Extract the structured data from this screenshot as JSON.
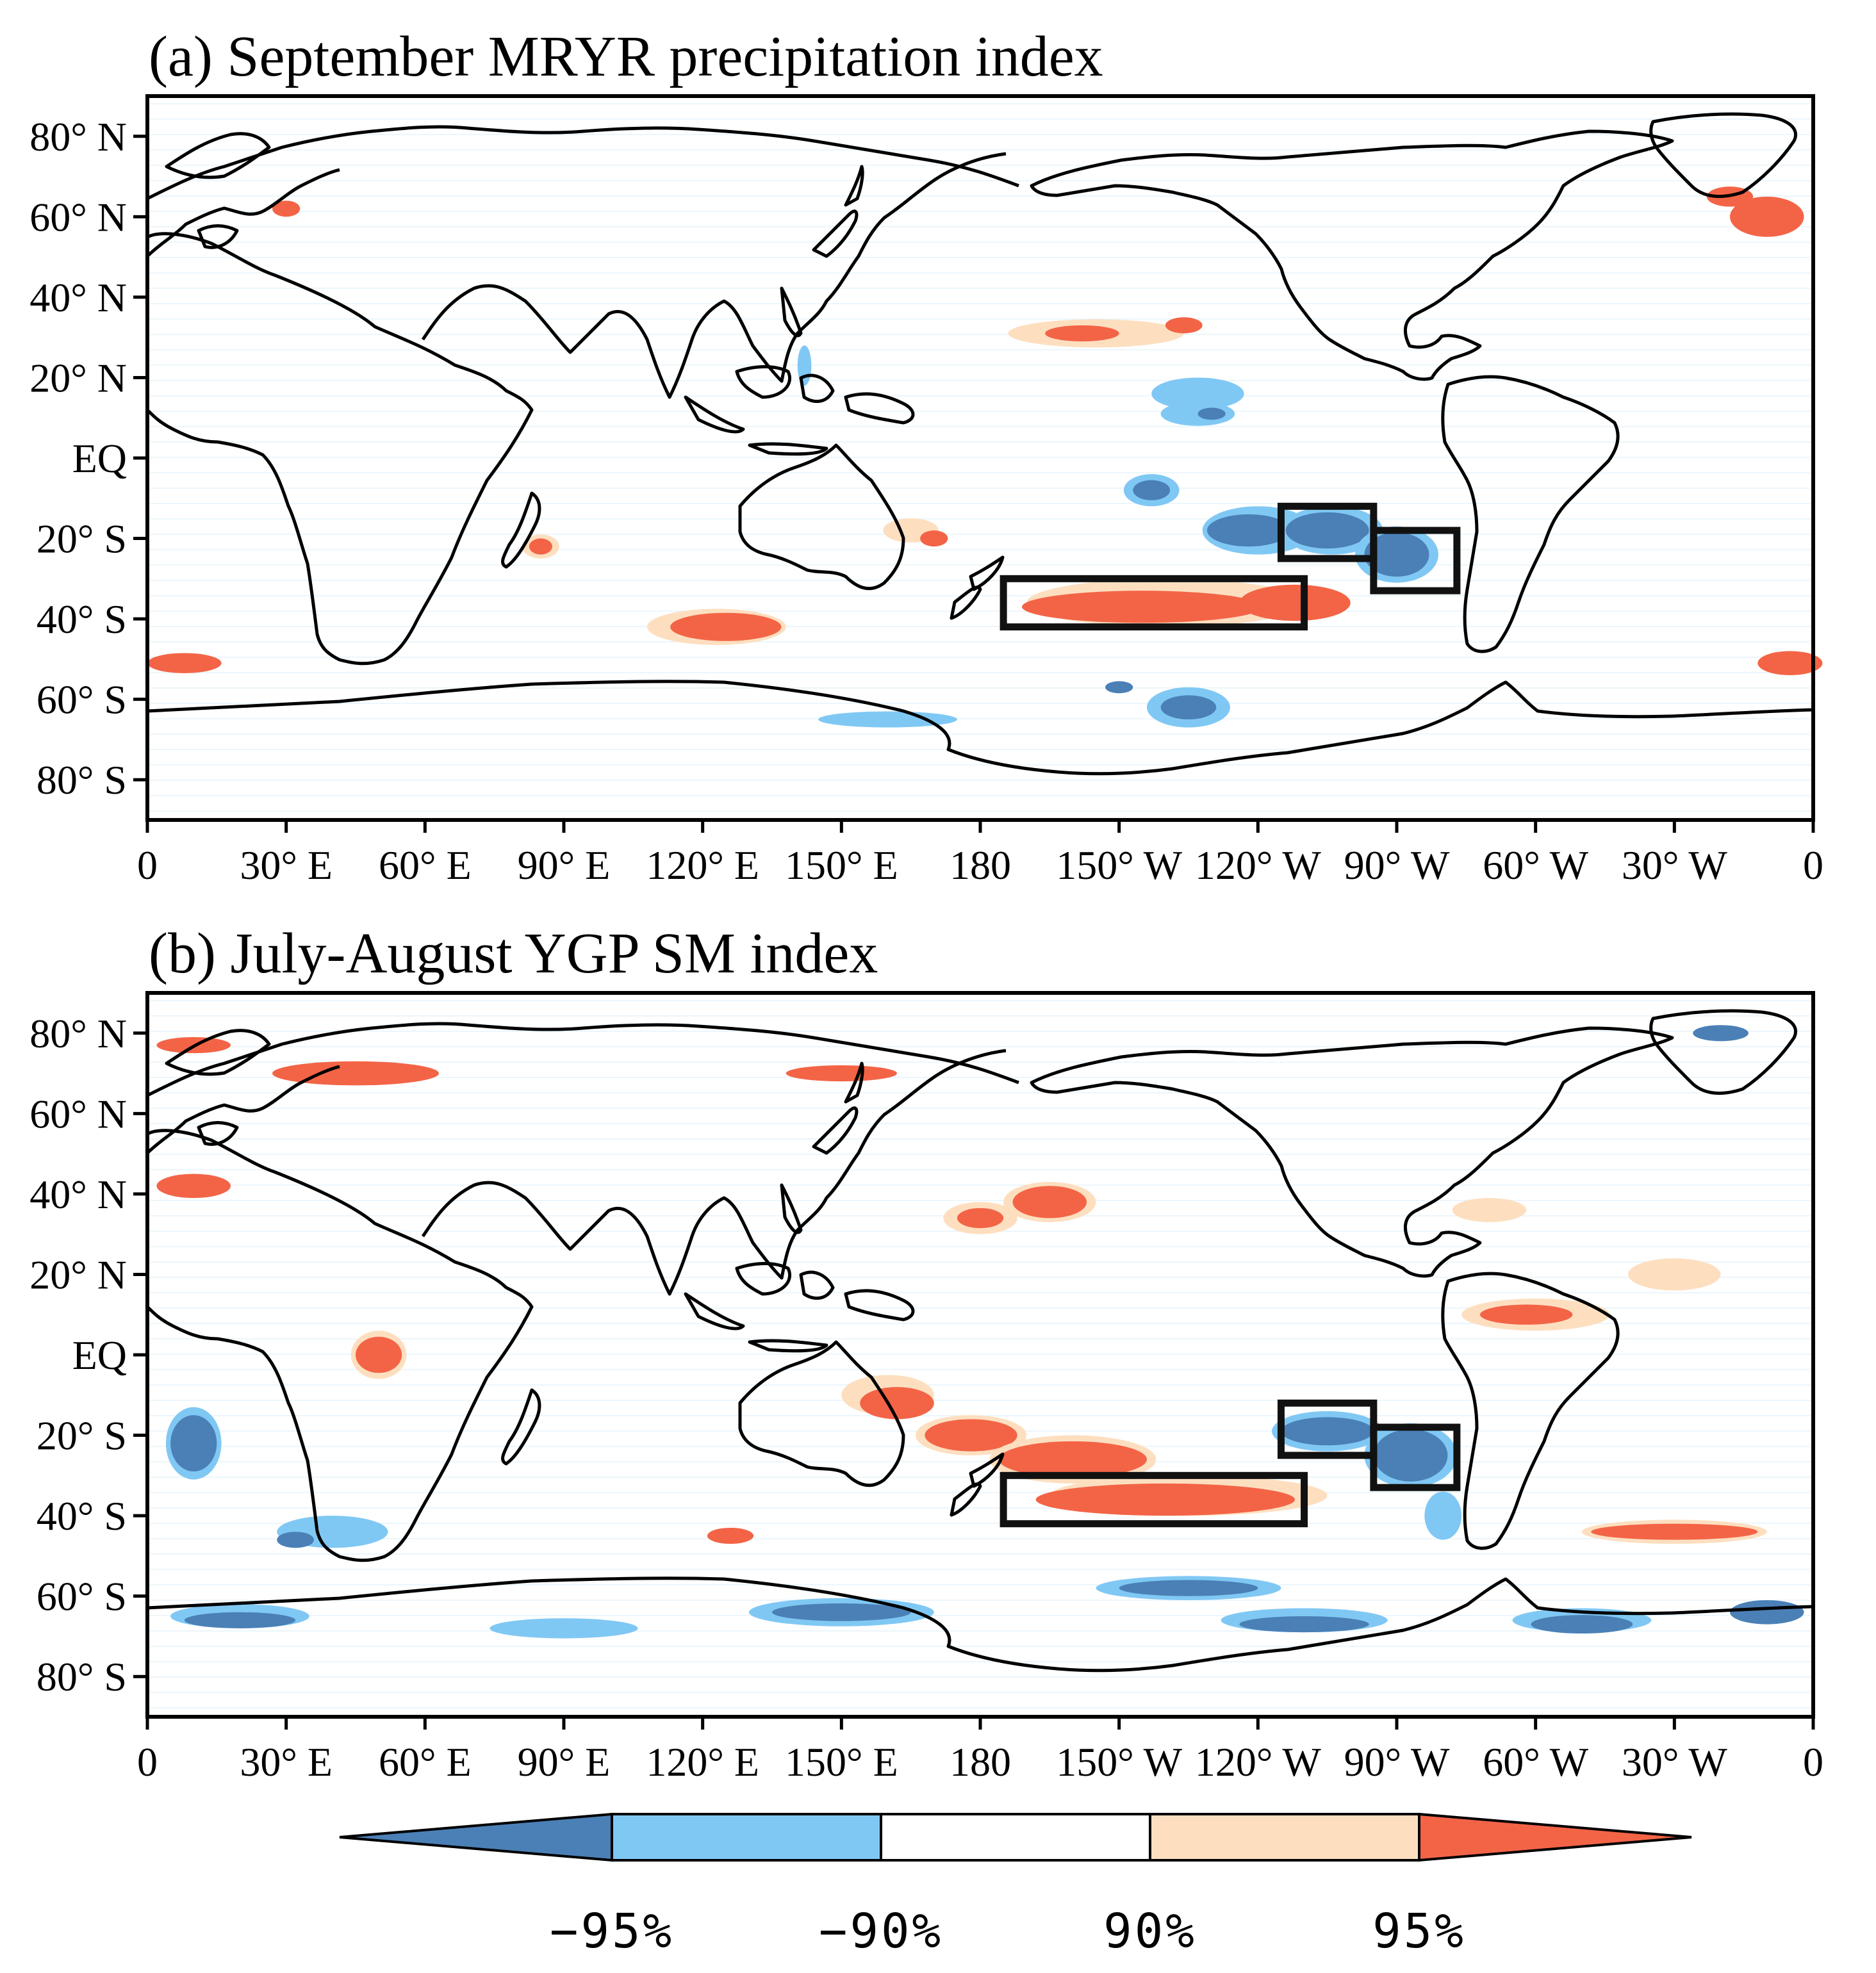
{
  "figure": {
    "colors": {
      "strong_negative": "#4a80b6",
      "negative": "#80c8f4",
      "neutral": "#ffffff",
      "positive": "#fddfc0",
      "strong_positive": "#f36446",
      "coastline": "#000000"
    },
    "panels": [
      {
        "id": "a",
        "title": "(a) September MRYR precipitation index",
        "y_ticks": [
          "80° N",
          "60° N",
          "40° N",
          "20° N",
          "EQ",
          "20° S",
          "40° S",
          "60° S",
          "80° S"
        ],
        "x_ticks": [
          "0",
          "30° E",
          "60° E",
          "90° E",
          "120° E",
          "150° E",
          "180",
          "150° W",
          "120° W",
          "90° W",
          "60° W",
          "30° W",
          "0"
        ],
        "boxes": [
          {
            "lon": [
              -115,
              -95
            ],
            "lat": [
              -25,
              -12
            ]
          },
          {
            "lon": [
              -95,
              -77
            ],
            "lat": [
              -33,
              -18
            ]
          },
          {
            "lon": [
              -175,
              -110
            ],
            "lat": [
              -42,
              -30
            ]
          }
        ],
        "significance_patches": [
          {
            "lon": -120,
            "lat": -18,
            "rlon": 12,
            "rlat": 6,
            "level": "-90%"
          },
          {
            "lon": -122,
            "lat": -18,
            "rlon": 9,
            "rlat": 4,
            "level": "-95%"
          },
          {
            "lon": -104,
            "lat": -18,
            "rlon": 11,
            "rlat": 6,
            "level": "-90%"
          },
          {
            "lon": -105,
            "lat": -18,
            "rlon": 9,
            "rlat": 4.5,
            "level": "-95%"
          },
          {
            "lon": -90,
            "lat": -24,
            "rlon": 9,
            "rlat": 7,
            "level": "-90%"
          },
          {
            "lon": -90,
            "lat": -24,
            "rlon": 7,
            "rlat": 5.5,
            "level": "-95%"
          },
          {
            "lon": -143,
            "lat": -8,
            "rlon": 6,
            "rlat": 4,
            "level": "-90%"
          },
          {
            "lon": -143,
            "lat": -8,
            "rlon": 4,
            "rlat": 2.5,
            "level": "-95%"
          },
          {
            "lon": -140,
            "lat": -36,
            "rlon": 30,
            "rlat": 6,
            "level": "90%"
          },
          {
            "lon": -145,
            "lat": -37,
            "rlon": 26,
            "rlat": 4,
            "level": "95%"
          },
          {
            "lon": -112,
            "lat": -36,
            "rlon": 12,
            "rlat": 4.5,
            "level": "95%"
          },
          {
            "lon": 123,
            "lat": -42,
            "rlon": 15,
            "rlat": 4.5,
            "level": "90%"
          },
          {
            "lon": 125,
            "lat": -42,
            "rlon": 12,
            "rlat": 3.5,
            "level": "95%"
          },
          {
            "lon": -155,
            "lat": 31,
            "rlon": 19,
            "rlat": 3.5,
            "level": "90%"
          },
          {
            "lon": -158,
            "lat": 31,
            "rlon": 8,
            "rlat": 2,
            "level": "95%"
          },
          {
            "lon": -136,
            "lat": 33,
            "rlon": 4,
            "rlat": 2,
            "level": "95%"
          },
          {
            "lon": -133,
            "lat": 16,
            "rlon": 10,
            "rlat": 4,
            "level": "-90%"
          },
          {
            "lon": -133,
            "lat": 11,
            "rlon": 8,
            "rlat": 3,
            "level": "-90%"
          },
          {
            "lon": -130,
            "lat": 11,
            "rlon": 3,
            "rlat": 1.5,
            "level": "-95%"
          },
          {
            "lon": 142,
            "lat": 23,
            "rlon": 1.5,
            "rlat": 5,
            "level": "-90%"
          },
          {
            "lon": -135,
            "lat": -62,
            "rlon": 9,
            "rlat": 5,
            "level": "-90%"
          },
          {
            "lon": -135,
            "lat": -62,
            "rlon": 6,
            "rlat": 3,
            "level": "-95%"
          },
          {
            "lon": -150,
            "lat": -57,
            "rlon": 3,
            "rlat": 1.5,
            "level": "-95%"
          },
          {
            "lon": 8,
            "lat": -51,
            "rlon": 8,
            "rlat": 2.5,
            "level": "95%"
          },
          {
            "lon": -5,
            "lat": -51,
            "rlon": 7,
            "rlat": 3,
            "level": "95%"
          },
          {
            "lon": -10,
            "lat": 60,
            "rlon": 8,
            "rlat": 5,
            "level": "95%"
          },
          {
            "lon": -18,
            "lat": 65,
            "rlon": 5,
            "rlat": 2.5,
            "level": "95%"
          },
          {
            "lon": 165,
            "lat": -18,
            "rlon": 6,
            "rlat": 3,
            "level": "90%"
          },
          {
            "lon": 170,
            "lat": -20,
            "rlon": 3,
            "rlat": 2,
            "level": "95%"
          },
          {
            "lon": 85,
            "lat": -22,
            "rlon": 4,
            "rlat": 3,
            "level": "90%"
          },
          {
            "lon": 85,
            "lat": -22,
            "rlon": 2.5,
            "rlat": 2,
            "level": "95%"
          },
          {
            "lon": 160,
            "lat": -65,
            "rlon": 15,
            "rlat": 2,
            "level": "-90%"
          },
          {
            "lon": 30,
            "lat": 62,
            "rlon": 3,
            "rlat": 2,
            "level": "95%"
          }
        ]
      },
      {
        "id": "b",
        "title": "(b) July-August YGP SM index",
        "y_ticks": [
          "80° N",
          "60° N",
          "40° N",
          "20° N",
          "EQ",
          "20° S",
          "40° S",
          "60° S",
          "80° S"
        ],
        "x_ticks": [
          "0",
          "30° E",
          "60° E",
          "90° E",
          "120° E",
          "150° E",
          "180",
          "150° W",
          "120° W",
          "90° W",
          "60° W",
          "30° W",
          "0"
        ],
        "boxes": [
          {
            "lon": [
              -115,
              -95
            ],
            "lat": [
              -25,
              -12
            ]
          },
          {
            "lon": [
              -95,
              -77
            ],
            "lat": [
              -33,
              -18
            ]
          },
          {
            "lon": [
              -175,
              -110
            ],
            "lat": [
              -42,
              -30
            ]
          }
        ],
        "significance_patches": [
          {
            "lon": -165,
            "lat": 38,
            "rlon": 10,
            "rlat": 5,
            "level": "90%"
          },
          {
            "lon": -165,
            "lat": 38,
            "rlon": 8,
            "rlat": 4,
            "level": "95%"
          },
          {
            "lon": -180,
            "lat": 34,
            "rlon": 8,
            "rlat": 4,
            "level": "90%"
          },
          {
            "lon": -180,
            "lat": 34,
            "rlon": 5,
            "rlat": 2.5,
            "level": "95%"
          },
          {
            "lon": 160,
            "lat": -10,
            "rlon": 10,
            "rlat": 5,
            "level": "90%"
          },
          {
            "lon": 162,
            "lat": -12,
            "rlon": 8,
            "rlat": 4,
            "level": "95%"
          },
          {
            "lon": 178,
            "lat": -20,
            "rlon": 12,
            "rlat": 5,
            "level": "90%"
          },
          {
            "lon": 178,
            "lat": -20,
            "rlon": 10,
            "rlat": 4,
            "level": "95%"
          },
          {
            "lon": -160,
            "lat": -26,
            "rlon": 18,
            "rlat": 6,
            "level": "90%"
          },
          {
            "lon": -160,
            "lat": -26,
            "rlon": 16,
            "rlat": 4.5,
            "level": "95%"
          },
          {
            "lon": -135,
            "lat": -35,
            "rlon": 30,
            "rlat": 5,
            "level": "90%"
          },
          {
            "lon": -140,
            "lat": -36,
            "rlon": 28,
            "rlat": 4,
            "level": "95%"
          },
          {
            "lon": -105,
            "lat": -19,
            "rlon": 12,
            "rlat": 5,
            "level": "-90%"
          },
          {
            "lon": -105,
            "lat": -19,
            "rlon": 10,
            "rlat": 3.5,
            "level": "-95%"
          },
          {
            "lon": -87,
            "lat": -25,
            "rlon": 10,
            "rlat": 8,
            "level": "-90%"
          },
          {
            "lon": -87,
            "lat": -25,
            "rlon": 8,
            "rlat": 6.5,
            "level": "-95%"
          },
          {
            "lon": -80,
            "lat": -40,
            "rlon": 4,
            "rlat": 6,
            "level": "-90%"
          },
          {
            "lon": 50,
            "lat": 0,
            "rlon": 6,
            "rlat": 6,
            "level": "90%"
          },
          {
            "lon": 50,
            "lat": 0,
            "rlon": 5,
            "rlat": 4.5,
            "level": "95%"
          },
          {
            "lon": 10,
            "lat": -22,
            "rlon": 6,
            "rlat": 9,
            "level": "-90%"
          },
          {
            "lon": 10,
            "lat": -22,
            "rlon": 5,
            "rlat": 7,
            "level": "-95%"
          },
          {
            "lon": 40,
            "lat": -44,
            "rlon": 12,
            "rlat": 4,
            "level": "-90%"
          },
          {
            "lon": 32,
            "lat": -46,
            "rlon": 4,
            "rlat": 2,
            "level": "-95%"
          },
          {
            "lon": -60,
            "lat": 10,
            "rlon": 16,
            "rlat": 4,
            "level": "90%"
          },
          {
            "lon": -62,
            "lat": 10,
            "rlon": 10,
            "rlat": 2.5,
            "level": "95%"
          },
          {
            "lon": -30,
            "lat": 20,
            "rlon": 10,
            "rlat": 4,
            "level": "90%"
          },
          {
            "lon": -70,
            "lat": 36,
            "rlon": 8,
            "rlat": 3,
            "level": "90%"
          },
          {
            "lon": -30,
            "lat": -44,
            "rlon": 20,
            "rlat": 3,
            "level": "90%"
          },
          {
            "lon": -30,
            "lat": -44,
            "rlon": 18,
            "rlat": 2,
            "level": "95%"
          },
          {
            "lon": 126,
            "lat": -45,
            "rlon": 5,
            "rlat": 2,
            "level": "95%"
          },
          {
            "lon": 10,
            "lat": 42,
            "rlon": 8,
            "rlat": 3,
            "level": "95%"
          },
          {
            "lon": 45,
            "lat": 70,
            "rlon": 18,
            "rlat": 3,
            "level": "95%"
          },
          {
            "lon": 10,
            "lat": 77,
            "rlon": 8,
            "rlat": 2,
            "level": "95%"
          },
          {
            "lon": 150,
            "lat": 70,
            "rlon": 12,
            "rlat": 2,
            "level": "95%"
          },
          {
            "lon": -135,
            "lat": -58,
            "rlon": 20,
            "rlat": 3,
            "level": "-90%"
          },
          {
            "lon": -135,
            "lat": -58,
            "rlon": 15,
            "rlat": 2,
            "level": "-95%"
          },
          {
            "lon": 150,
            "lat": -64,
            "rlon": 20,
            "rlat": 3.5,
            "level": "-90%"
          },
          {
            "lon": 150,
            "lat": -64,
            "rlon": 15,
            "rlat": 2.2,
            "level": "-95%"
          },
          {
            "lon": -50,
            "lat": -66,
            "rlon": 15,
            "rlat": 3,
            "level": "-90%"
          },
          {
            "lon": -50,
            "lat": -67,
            "rlon": 11,
            "rlat": 2.3,
            "level": "-95%"
          },
          {
            "lon": 20,
            "lat": -65,
            "rlon": 15,
            "rlat": 3,
            "level": "-90%"
          },
          {
            "lon": 20,
            "lat": -66,
            "rlon": 12,
            "rlat": 2,
            "level": "-95%"
          },
          {
            "lon": -110,
            "lat": -66,
            "rlon": 18,
            "rlat": 3,
            "level": "-90%"
          },
          {
            "lon": -110,
            "lat": -67,
            "rlon": 14,
            "rlat": 2,
            "level": "-95%"
          },
          {
            "lon": 90,
            "lat": -68,
            "rlon": 16,
            "rlat": 2.5,
            "level": "-90%"
          },
          {
            "lon": -10,
            "lat": -64,
            "rlon": 8,
            "rlat": 3,
            "level": "-95%"
          },
          {
            "lon": -20,
            "lat": 80,
            "rlon": 6,
            "rlat": 2,
            "level": "-95%"
          }
        ]
      }
    ],
    "colorbar": {
      "labels": [
        "−95%",
        "−90%",
        "90%",
        "95%"
      ]
    }
  }
}
